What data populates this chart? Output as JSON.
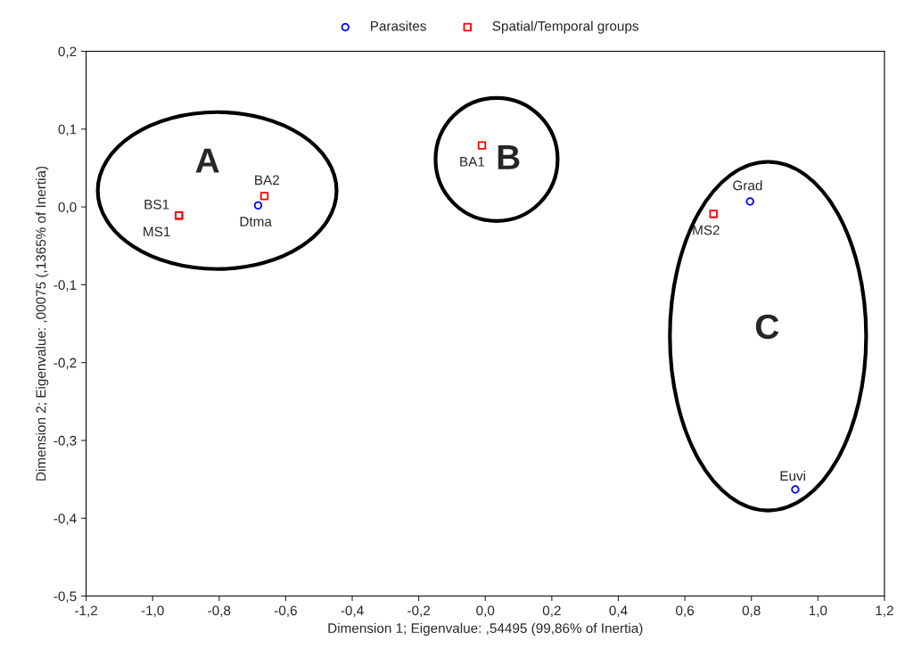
{
  "chart_data": {
    "type": "scatter",
    "xlabel": "Dimension 1; Eigenvalue: ,54495 (99,86% of Inertia)",
    "ylabel": "Dimension 2; Eigenvalue: ,00075 (,1365% of Inertia)",
    "series": [
      {
        "name": "Parasites",
        "color": "#0000ff",
        "marker": "circle",
        "x": [
          -0.683,
          0.796,
          0.932
        ],
        "values": [
          0.002,
          0.007,
          -0.363
        ]
      },
      {
        "name": "Spatial/Temporal groups",
        "color": "#ff0000",
        "marker": "square",
        "x": [
          -0.921,
          -0.921,
          -0.664,
          -0.01,
          0.686
        ],
        "values": [
          -0.011,
          -0.011,
          0.014,
          0.079,
          -0.009
        ]
      }
    ],
    "annotations": [
      {
        "text": "Dtma",
        "x": -0.683,
        "y": 0.002
      },
      {
        "text": "Grad",
        "x": 0.796,
        "y": 0.007
      },
      {
        "text": "Euvi",
        "x": 0.932,
        "y": -0.363
      },
      {
        "text": "BS1",
        "x": -0.921,
        "y": -0.011
      },
      {
        "text": "MS1",
        "x": -0.921,
        "y": -0.011
      },
      {
        "text": "BA2",
        "x": -0.664,
        "y": 0.014
      },
      {
        "text": "BA1",
        "x": -0.01,
        "y": 0.079
      },
      {
        "text": "MS2",
        "x": 0.686,
        "y": -0.009
      },
      "A",
      "B",
      "C"
    ],
    "xlim": [
      -1.2,
      1.2
    ],
    "xticks": [
      {
        "value": -1.2,
        "label": "-1,2"
      },
      {
        "value": -1.0,
        "label": "-1,0"
      },
      {
        "value": -0.8,
        "label": "-0,8"
      },
      {
        "value": -0.6,
        "label": "-0,6"
      },
      {
        "value": -0.4,
        "label": "-0,4"
      },
      {
        "value": -0.2,
        "label": "-0,2"
      },
      {
        "value": 0.0,
        "label": "0,0"
      },
      {
        "value": 0.2,
        "label": "0,2"
      },
      {
        "value": 0.4,
        "label": "0,4"
      },
      {
        "value": 0.6,
        "label": "0,6"
      },
      {
        "value": 0.8,
        "label": "0,8"
      },
      {
        "value": 1.0,
        "label": "1,0"
      },
      {
        "value": 1.2,
        "label": "1,2"
      }
    ],
    "ylim": [
      -0.5,
      0.2
    ],
    "yticks": [
      {
        "value": -0.5,
        "label": "-0,5"
      },
      {
        "value": -0.4,
        "label": "-0,4"
      },
      {
        "value": -0.3,
        "label": "-0,3"
      },
      {
        "value": -0.2,
        "label": "-0,2"
      },
      {
        "value": -0.1,
        "label": "-0,1"
      },
      {
        "value": 0.0,
        "label": "0,0"
      },
      {
        "value": 0.1,
        "label": "0,1"
      },
      {
        "value": 0.2,
        "label": "0,2"
      }
    ],
    "grid": false,
    "legend": "top"
  }
}
